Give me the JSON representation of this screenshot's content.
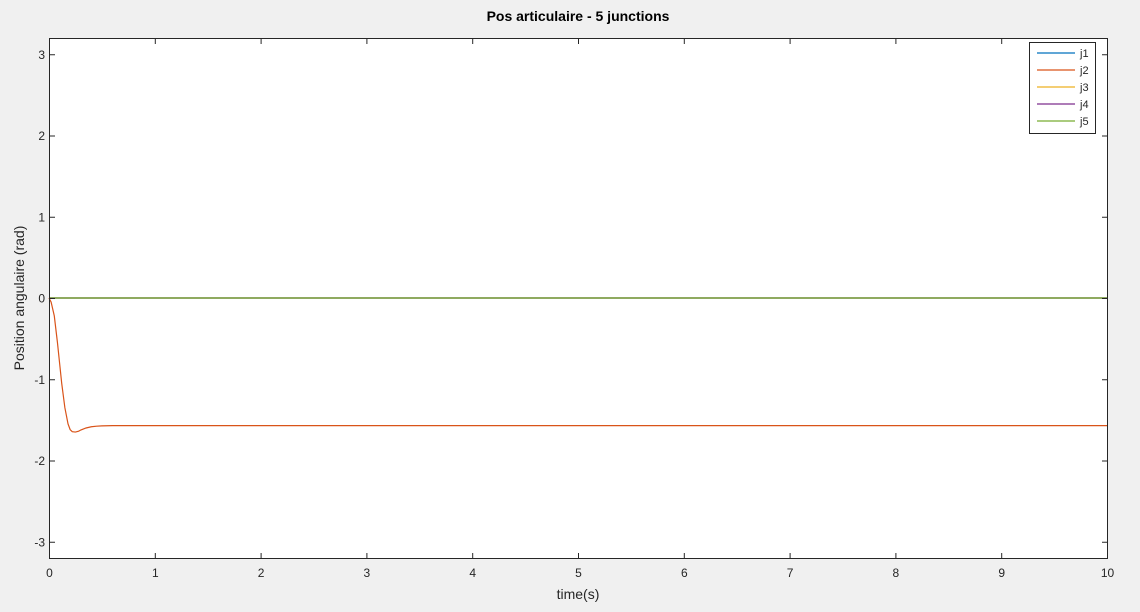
{
  "chart_data": {
    "type": "line",
    "title": "Pos articulaire - 5 junctions",
    "xlabel": "time(s)",
    "ylabel": "Position angulaire (rad)",
    "xlim": [
      0,
      10
    ],
    "ylim": [
      -3.2,
      3.2
    ],
    "xticks": [
      0,
      1,
      2,
      3,
      4,
      5,
      6,
      7,
      8,
      9,
      10
    ],
    "yticks": [
      -3,
      -2,
      -1,
      0,
      1,
      2,
      3
    ],
    "xtick_labels": [
      "0",
      "1",
      "2",
      "3",
      "4",
      "5",
      "6",
      "7",
      "8",
      "9",
      "10"
    ],
    "ytick_labels": [
      "-3",
      "-2",
      "-1",
      "0",
      "1",
      "2",
      "3"
    ],
    "grid": false,
    "legend_position": "top-right",
    "series": [
      {
        "name": "j1",
        "color": "#0072bd",
        "x": [
          0,
          10
        ],
        "y": [
          0,
          0
        ]
      },
      {
        "name": "j2",
        "color": "#d95319",
        "x": [
          0,
          0.02,
          0.05,
          0.08,
          0.1,
          0.12,
          0.15,
          0.18,
          0.2,
          0.22,
          0.25,
          0.28,
          0.3,
          0.35,
          0.4,
          0.45,
          0.5,
          0.55,
          0.6,
          0.7,
          0.8,
          1.0,
          2,
          3,
          4,
          5,
          6,
          7,
          8,
          9,
          10
        ],
        "y": [
          0,
          -0.05,
          -0.22,
          -0.55,
          -0.8,
          -1.05,
          -1.35,
          -1.55,
          -1.62,
          -1.645,
          -1.65,
          -1.64,
          -1.625,
          -1.6,
          -1.585,
          -1.578,
          -1.574,
          -1.572,
          -1.571,
          -1.571,
          -1.571,
          -1.571,
          -1.571,
          -1.571,
          -1.571,
          -1.571,
          -1.571,
          -1.571,
          -1.571,
          -1.571,
          -1.571
        ]
      },
      {
        "name": "j3",
        "color": "#edb120",
        "x": [
          0,
          10
        ],
        "y": [
          0,
          0
        ]
      },
      {
        "name": "j4",
        "color": "#7e2f8e",
        "x": [
          0,
          10
        ],
        "y": [
          0,
          0
        ]
      },
      {
        "name": "j5",
        "color": "#77ac30",
        "x": [
          0,
          10
        ],
        "y": [
          0,
          0
        ]
      }
    ]
  }
}
